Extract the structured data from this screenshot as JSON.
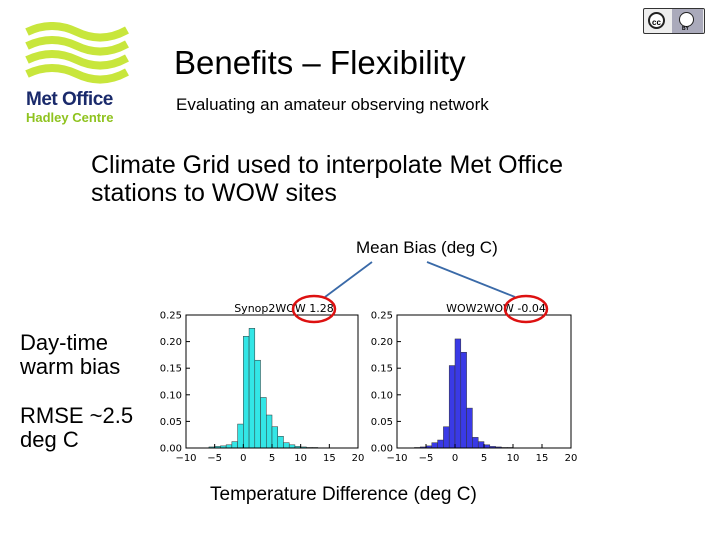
{
  "logo": {
    "line1": "Met Office",
    "line2": "Hadley Centre",
    "brand_navy": "#1a2a6b",
    "brand_green": "#8fc31f",
    "icon": "met-office-wave-logo"
  },
  "license_badge": {
    "cc": "cc",
    "by": "BY",
    "icon": "creative-commons-by-icon"
  },
  "slide": {
    "title": "Benefits – Flexibility",
    "subtitle": "Evaluating an amateur observing network",
    "body": "Climate Grid used to interpolate Met Office stations to WOW sites",
    "mean_bias_label": "Mean Bias (deg C)",
    "side_note_1": "Day-time warm bias",
    "side_note_2": "RMSE ~2.5 deg C",
    "x_label": "Temperature Difference (deg C)"
  },
  "chart_data": [
    {
      "type": "bar",
      "title": "Synop2WOW 1.28",
      "color": "#33e6e6",
      "x_ticks": [
        -10,
        -5,
        0,
        5,
        10,
        15,
        20
      ],
      "y_ticks": [
        0.0,
        0.05,
        0.1,
        0.15,
        0.2,
        0.25
      ],
      "xlim": [
        -10,
        20
      ],
      "ylim": [
        0,
        0.25
      ],
      "bin_width": 1,
      "bins_start": [
        -6,
        -5,
        -4,
        -3,
        -2,
        -1,
        0,
        1,
        2,
        3,
        4,
        5,
        6,
        7,
        8,
        9,
        10,
        11,
        12,
        13,
        14
      ],
      "values": [
        0.002,
        0.003,
        0.004,
        0.006,
        0.012,
        0.045,
        0.21,
        0.225,
        0.165,
        0.095,
        0.062,
        0.04,
        0.022,
        0.01,
        0.006,
        0.003,
        0.002,
        0.001,
        0.001,
        0.0005,
        0.0005
      ]
    },
    {
      "type": "bar",
      "title": "WOW2WOW -0.04",
      "color": "#3a3ae6",
      "x_ticks": [
        -10,
        -5,
        0,
        5,
        10,
        15,
        20
      ],
      "y_ticks": [
        0.0,
        0.05,
        0.1,
        0.15,
        0.2,
        0.25
      ],
      "xlim": [
        -10,
        20
      ],
      "ylim": [
        0,
        0.25
      ],
      "bin_width": 1,
      "bins_start": [
        -7,
        -6,
        -5,
        -4,
        -3,
        -2,
        -1,
        0,
        1,
        2,
        3,
        4,
        5,
        6,
        7,
        8,
        9
      ],
      "values": [
        0.001,
        0.002,
        0.004,
        0.01,
        0.015,
        0.04,
        0.155,
        0.205,
        0.18,
        0.075,
        0.02,
        0.012,
        0.006,
        0.003,
        0.002,
        0.001,
        0.001
      ]
    }
  ],
  "callout_color": "#dd1111"
}
